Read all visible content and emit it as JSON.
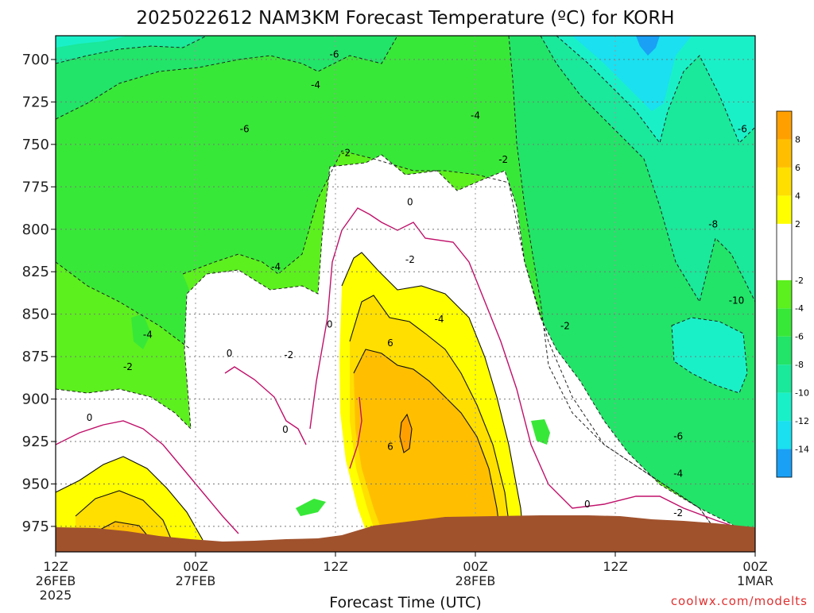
{
  "header": {
    "title": "2025022612 NAM3KM Forecast Temperature (ºC) for KORH"
  },
  "footer": {
    "credit": "coolwx.com/modelts"
  },
  "chart_data": {
    "type": "heatmap",
    "title": "2025022612 NAM3KM Forecast Temperature (ºC) for KORH",
    "xlabel": "Forecast Time (UTC)",
    "ylabel": "",
    "x_ticks": [
      {
        "hours": 0,
        "lines": [
          "12Z",
          "26FEB",
          "2025"
        ]
      },
      {
        "hours": 12,
        "lines": [
          "00Z",
          "27FEB"
        ]
      },
      {
        "hours": 24,
        "lines": [
          "12Z"
        ]
      },
      {
        "hours": 36,
        "lines": [
          "00Z",
          "28FEB"
        ]
      },
      {
        "hours": 48,
        "lines": [
          "12Z"
        ]
      },
      {
        "hours": 60,
        "lines": [
          "00Z",
          "1MAR"
        ]
      }
    ],
    "xlim": [
      0,
      60
    ],
    "y_ticks": [
      "700",
      "725",
      "750",
      "775",
      "800",
      "825",
      "850",
      "875",
      "900",
      "925",
      "950",
      "975"
    ],
    "ylim": [
      686,
      990
    ],
    "grid": true,
    "colorbar": {
      "bands": [
        {
          "min": -16,
          "max": -14,
          "color": "#1aa0f5"
        },
        {
          "min": -14,
          "max": -12,
          "color": "#1ae0f0"
        },
        {
          "min": -12,
          "max": -10,
          "color": "#1af0c8"
        },
        {
          "min": -10,
          "max": -8,
          "color": "#1ae89a"
        },
        {
          "min": -8,
          "max": -6,
          "color": "#22e468"
        },
        {
          "min": -6,
          "max": -4,
          "color": "#38e838"
        },
        {
          "min": -4,
          "max": -2,
          "color": "#5cf01e"
        },
        {
          "min": -2,
          "max": 2,
          "color": "#ffffff"
        },
        {
          "min": 2,
          "max": 4,
          "color": "#ffff00"
        },
        {
          "min": 4,
          "max": 6,
          "color": "#ffdf00"
        },
        {
          "min": 6,
          "max": 8,
          "color": "#ffbf00"
        },
        {
          "min": 8,
          "max": 10,
          "color": "#ffa000"
        }
      ],
      "labels": [
        "-14",
        "-12",
        "-10",
        "-8",
        "-6",
        "-4",
        "-2",
        "2",
        "4",
        "6",
        "8"
      ]
    },
    "ground_color": "#a0522d",
    "contour_labels": [
      {
        "text": "-6",
        "hours": 23.9,
        "hpa": 697
      },
      {
        "text": "-4",
        "hours": 22.3,
        "hpa": 715
      },
      {
        "text": "-6",
        "hours": 16.2,
        "hpa": 741
      },
      {
        "text": "-2",
        "hours": 24.9,
        "hpa": 755
      },
      {
        "text": "-4",
        "hours": 36.0,
        "hpa": 733
      },
      {
        "text": "-2",
        "hours": 38.4,
        "hpa": 759
      },
      {
        "text": "0",
        "hours": 30.4,
        "hpa": 784
      },
      {
        "text": "-2",
        "hours": 30.4,
        "hpa": 818
      },
      {
        "text": "-4",
        "hours": 18.9,
        "hpa": 822
      },
      {
        "text": "-4",
        "hours": 32.9,
        "hpa": 853
      },
      {
        "text": "-2",
        "hours": 43.7,
        "hpa": 857
      },
      {
        "text": "-4",
        "hours": 7.9,
        "hpa": 862
      },
      {
        "text": "0",
        "hours": 23.5,
        "hpa": 856
      },
      {
        "text": "0",
        "hours": 14.9,
        "hpa": 873
      },
      {
        "text": "-2",
        "hours": 20.0,
        "hpa": 874
      },
      {
        "text": "-2",
        "hours": 6.2,
        "hpa": 881
      },
      {
        "text": "6",
        "hours": 28.7,
        "hpa": 867
      },
      {
        "text": "0",
        "hours": 2.9,
        "hpa": 911
      },
      {
        "text": "0",
        "hours": 19.7,
        "hpa": 918
      },
      {
        "text": "6",
        "hours": 28.7,
        "hpa": 928
      },
      {
        "text": "-10",
        "hours": 58.4,
        "hpa": 842
      },
      {
        "text": "-8",
        "hours": 56.4,
        "hpa": 797
      },
      {
        "text": "-6",
        "hours": 58.9,
        "hpa": 741
      },
      {
        "text": "-6",
        "hours": 53.4,
        "hpa": 922
      },
      {
        "text": "-4",
        "hours": 53.4,
        "hpa": 944
      },
      {
        "text": "-2",
        "hours": 53.4,
        "hpa": 967
      },
      {
        "text": "0",
        "hours": 45.6,
        "hpa": 962
      }
    ]
  }
}
